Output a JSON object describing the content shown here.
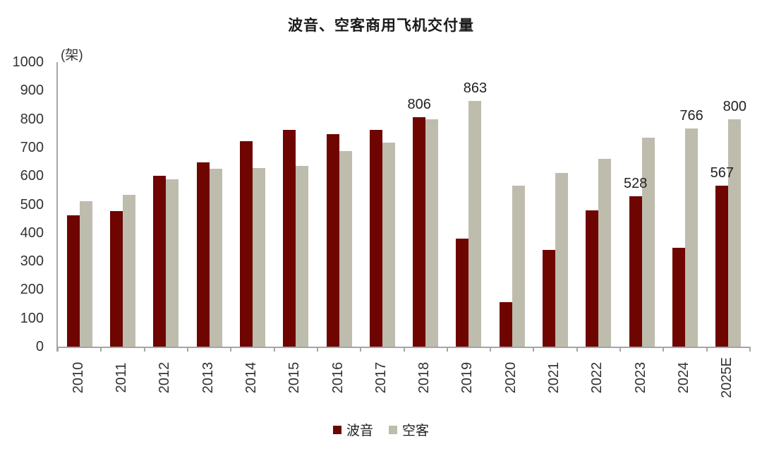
{
  "title": "波音、空客商用飞机交付量",
  "unit_label": "(架)",
  "colors": {
    "boeing_bar": "#6e0501",
    "airbus_bar": "#bebcad",
    "axis_line": "#a6a6a6",
    "text": "#333333"
  },
  "legend": {
    "items": [
      "波音",
      "空客"
    ]
  },
  "chart_data": {
    "type": "bar",
    "title": "波音、空客商用飞机交付量",
    "ylabel": "(架)",
    "xlabel": "",
    "ylim": [
      0,
      1000
    ],
    "ytick_step": 100,
    "grid": false,
    "legend_position": "bottom",
    "categories": [
      "2010",
      "2011",
      "2012",
      "2013",
      "2014",
      "2015",
      "2016",
      "2017",
      "2018",
      "2019",
      "2020",
      "2021",
      "2022",
      "2023",
      "2024",
      "2025E"
    ],
    "series": [
      {
        "name": "波音",
        "color": "#6e0501",
        "values": [
          462,
          477,
          601,
          648,
          723,
          762,
          748,
          763,
          806,
          380,
          157,
          340,
          480,
          528,
          348,
          567
        ]
      },
      {
        "name": "空客",
        "color": "#bebcad",
        "values": [
          510,
          534,
          588,
          626,
          629,
          635,
          688,
          718,
          800,
          863,
          566,
          611,
          661,
          735,
          766,
          800
        ]
      }
    ],
    "data_labels": [
      {
        "series_index": 0,
        "category_index": 8,
        "text": "806"
      },
      {
        "series_index": 1,
        "category_index": 9,
        "text": "863"
      },
      {
        "series_index": 0,
        "category_index": 13,
        "text": "528"
      },
      {
        "series_index": 1,
        "category_index": 14,
        "text": "766"
      },
      {
        "series_index": 0,
        "category_index": 15,
        "text": "567"
      },
      {
        "series_index": 1,
        "category_index": 15,
        "text": "800"
      }
    ]
  }
}
